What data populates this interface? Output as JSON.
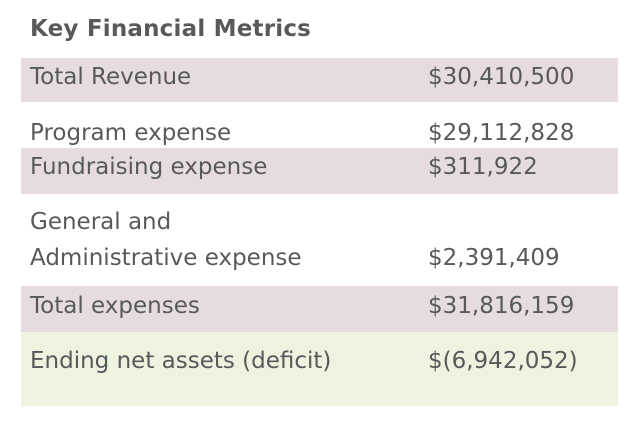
{
  "title": "Key Financial Metrics",
  "colors": {
    "text": "#58595b",
    "row_shade": "#e6dcde",
    "highlight_shade": "#eef3e0"
  },
  "rows": [
    {
      "label": "Total Revenue",
      "value": "$30,410,500"
    },
    {
      "label": "Program expense",
      "value": "$29,112,828"
    },
    {
      "label": "Fundraising expense",
      "value": "$311,922"
    },
    {
      "label_line1": "General and",
      "label_line2": "Administrative expense",
      "value": "$2,391,409"
    },
    {
      "label": "Total expenses",
      "value": "$31,816,159"
    },
    {
      "label": "Ending net assets (deficit)",
      "value": "$(6,942,052)"
    }
  ]
}
